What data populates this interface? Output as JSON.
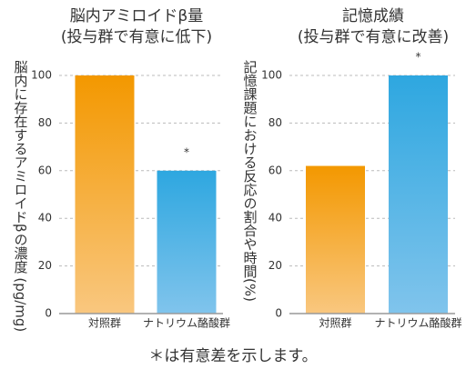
{
  "chart_data": [
    {
      "type": "bar",
      "title": "脳内アミロイドβ量",
      "subtitle": "(投与群で有意に低下)",
      "y_label": "脳内に存在するアミロイドβの濃度 (pg/mg)",
      "categories": [
        "対照群",
        "ナトリウム酪酸群"
      ],
      "values": [
        100,
        60
      ],
      "colors": [
        [
          "#f39800",
          "#f9c77f"
        ],
        [
          "#2ea7e0",
          "#80c4ec"
        ]
      ],
      "annotations": [
        {
          "category": "ナトリウム酪酸群",
          "text": "*"
        }
      ],
      "ylim": [
        0,
        100
      ],
      "yticks": [
        0,
        20,
        40,
        60,
        80,
        100
      ],
      "grid": true
    },
    {
      "type": "bar",
      "title": "記憶成績",
      "subtitle": "(投与群で有意に改善)",
      "y_label": "記憶課題における反応の割合や時間(%)",
      "categories": [
        "対照群",
        "ナトリウム酪酸群"
      ],
      "values": [
        62,
        100
      ],
      "colors": [
        [
          "#f39800",
          "#f9c77f"
        ],
        [
          "#2ea7e0",
          "#80c4ec"
        ]
      ],
      "annotations": [
        {
          "category": "ナトリウム酪酸群",
          "text": "*"
        }
      ],
      "ylim": [
        0,
        100
      ],
      "yticks": [
        0,
        20,
        40,
        60,
        80,
        100
      ],
      "grid": true
    }
  ],
  "footnote": "＊は有意差を示します。"
}
